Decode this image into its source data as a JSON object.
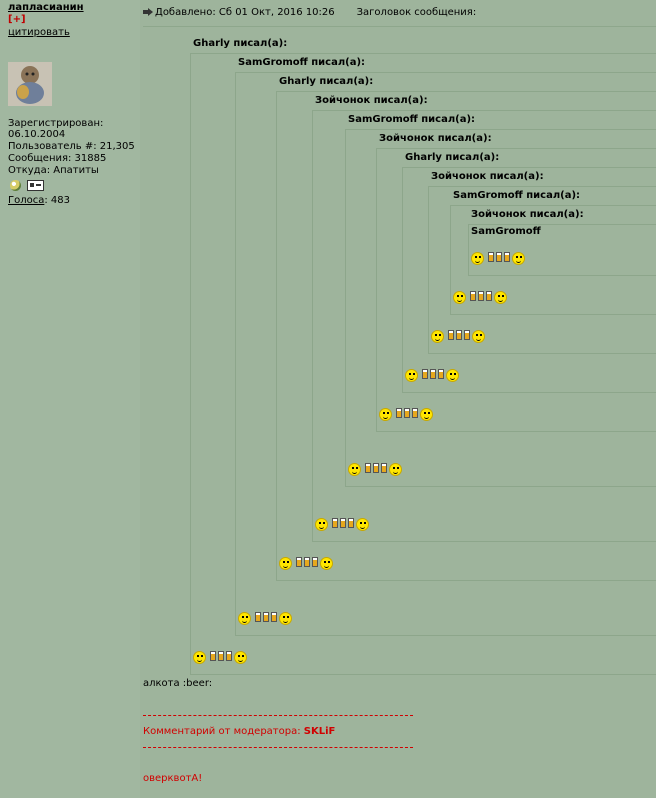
{
  "author": {
    "name": "лапласианин",
    "plus": "[+]",
    "quote": "цитировать",
    "registered_label": "Зарегистрирован:",
    "registered_date": "06.10.2004",
    "user_number": "Пользователь #: 21,305",
    "posts": "Сообщения: 31885",
    "location": "Откуда: Апатиты",
    "votes_label": "Голоса",
    "votes_value": ": 483"
  },
  "post": {
    "posted": "Добавлено: Сб 01 Окт, 2016 10:26",
    "subject_label": "Заголовок сообщения:"
  },
  "quotes": [
    {
      "header": "Gharly писал(а):"
    },
    {
      "header": "SamGromoff писал(а):"
    },
    {
      "header": "Gharly писал(а):"
    },
    {
      "header": "Зойчонок писал(а):"
    },
    {
      "header": "SamGromoff писал(а):"
    },
    {
      "header": "Зойчонок писал(а):"
    },
    {
      "header": "Gharly писал(а):"
    },
    {
      "header": "Зойчонок писал(а):"
    },
    {
      "header": "SamGromoff писал(а):"
    },
    {
      "header": "Зойчонок писал(а):"
    }
  ],
  "innermost_text": "SamGromoff",
  "body_text": "алкота :beer:",
  "moderator": {
    "label": "Комментарий от модератора:",
    "name": "SKLiF",
    "text": "оверквотА!"
  },
  "colors": {
    "background": "#9eb49c",
    "moderator": "#d10000",
    "smiley": "#ffe600"
  }
}
